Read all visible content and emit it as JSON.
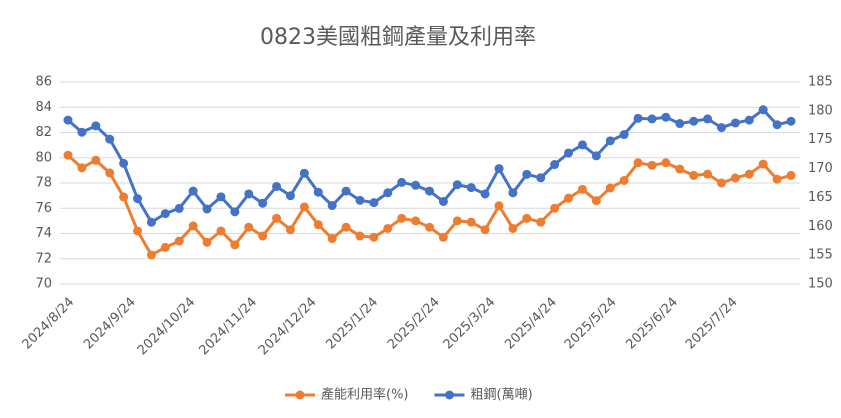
{
  "chart_data": {
    "type": "line",
    "title": "0823美國粗鋼產量及利用率",
    "x": [
      "2024/8/24",
      "2024/8/31",
      "2024/9/7",
      "2024/9/14",
      "2024/9/21",
      "2024/9/28",
      "2024/10/5",
      "2024/10/12",
      "2024/10/19",
      "2024/10/26",
      "2024/11/2",
      "2024/11/9",
      "2024/11/16",
      "2024/11/23",
      "2024/11/30",
      "2024/12/7",
      "2024/12/14",
      "2024/12/21",
      "2024/12/28",
      "2025/1/4",
      "2025/1/11",
      "2025/1/18",
      "2025/1/25",
      "2025/2/1",
      "2025/2/8",
      "2025/2/15",
      "2025/2/22",
      "2025/3/1",
      "2025/3/8",
      "2025/3/15",
      "2025/3/22",
      "2025/3/29",
      "2025/4/5",
      "2025/4/12",
      "2025/4/19",
      "2025/4/26",
      "2025/5/3",
      "2025/5/10",
      "2025/5/17",
      "2025/5/24",
      "2025/5/31",
      "2025/6/7",
      "2025/6/14",
      "2025/6/21",
      "2025/6/28",
      "2025/7/5",
      "2025/7/12",
      "2025/7/19",
      "2025/7/26",
      "2025/8/2",
      "2025/8/9",
      "2025/8/16",
      "2025/8/23"
    ],
    "xticks": [
      "2024/8/24",
      "2024/9/24",
      "2024/10/24",
      "2024/11/24",
      "2024/12/24",
      "2025/1/24",
      "2025/2/24",
      "2025/3/24",
      "2025/4/24",
      "2025/5/24",
      "2025/6/24",
      "2025/7/24"
    ],
    "series": [
      {
        "name": "產能利用率(%)",
        "color": "#ed7d31",
        "axis": "y",
        "values": [
          80.2,
          79.2,
          79.8,
          78.8,
          76.9,
          74.2,
          72.3,
          72.9,
          73.4,
          74.6,
          73.3,
          74.2,
          73.1,
          74.5,
          73.8,
          75.2,
          74.3,
          76.1,
          74.7,
          73.6,
          74.5,
          73.8,
          73.7,
          74.4,
          75.2,
          75.0,
          74.5,
          73.7,
          75.0,
          74.9,
          74.3,
          76.2,
          74.4,
          75.2,
          74.9,
          76.0,
          76.8,
          77.5,
          76.6,
          77.6,
          78.2,
          79.6,
          79.4,
          79.6,
          79.1,
          78.6,
          78.7,
          78.0,
          78.4,
          78.7,
          79.5,
          78.3,
          78.6
        ]
      },
      {
        "name": "粗鋼(萬噸)",
        "color": "#4472c4",
        "axis": "y2",
        "values": [
          178.4,
          176.3,
          177.4,
          175.1,
          170.9,
          164.8,
          160.7,
          162.2,
          163.1,
          166.1,
          163.0,
          165.1,
          162.5,
          165.6,
          164.0,
          166.9,
          165.3,
          169.2,
          165.9,
          163.6,
          166.1,
          164.5,
          164.1,
          165.8,
          167.6,
          167.1,
          166.1,
          164.3,
          167.2,
          166.7,
          165.6,
          170.0,
          165.8,
          169.0,
          168.4,
          170.7,
          172.7,
          174.1,
          172.2,
          174.8,
          175.9,
          178.7,
          178.6,
          178.9,
          177.8,
          178.2,
          178.6,
          177.1,
          177.9,
          178.4,
          180.2,
          177.6,
          178.2
        ]
      }
    ],
    "ylim": [
      70,
      86
    ],
    "yticks": [
      70,
      72,
      74,
      76,
      78,
      80,
      82,
      84,
      86
    ],
    "y2lim": [
      150,
      185
    ],
    "y2ticks": [
      150,
      155,
      160,
      165,
      170,
      175,
      180,
      185
    ],
    "grid": true,
    "legend": "bottom"
  }
}
